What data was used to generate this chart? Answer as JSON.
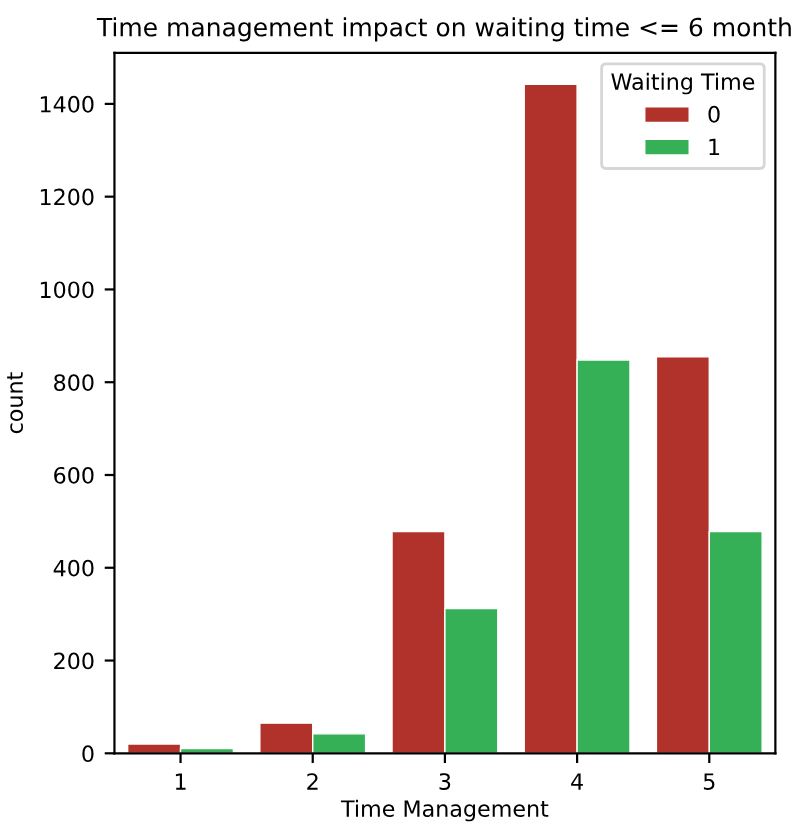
{
  "chart_data": {
    "type": "bar",
    "title": "Time management impact on waiting time <= 6 month",
    "xlabel": "Time Management",
    "ylabel": "count",
    "legend_title": "Waiting Time",
    "categories": [
      "1",
      "2",
      "3",
      "4",
      "5"
    ],
    "series": [
      {
        "name": "0",
        "color": "#b0322b",
        "values": [
          20,
          65,
          478,
          1442,
          855
        ]
      },
      {
        "name": "1",
        "color": "#36b057",
        "values": [
          10,
          42,
          312,
          848,
          478
        ]
      }
    ],
    "ylim": [
      0,
      1510
    ],
    "yticks": [
      0,
      200,
      400,
      600,
      800,
      1000,
      1200,
      1400
    ],
    "grid": false,
    "legend": "top right"
  }
}
